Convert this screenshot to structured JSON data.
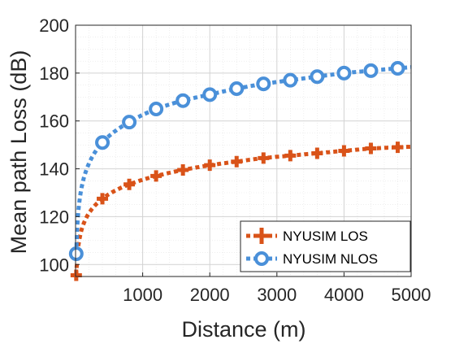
{
  "chart_data": {
    "type": "line",
    "xlabel": "Distance (m)",
    "ylabel": "Mean path Loss (dB)",
    "xlim": [
      0,
      5000
    ],
    "ylim": [
      95,
      200
    ],
    "x_ticks": [
      1000,
      2000,
      3000,
      4000,
      5000
    ],
    "x_tick_labels": [
      "1000",
      "2000",
      "3000",
      "4000",
      "5000"
    ],
    "y_ticks": [
      100,
      120,
      140,
      160,
      180,
      200
    ],
    "y_tick_labels": [
      "100",
      "120",
      "140",
      "160",
      "180",
      "200"
    ],
    "grid": true,
    "minor_grid": true,
    "legend_position": "bottom-right",
    "series": [
      {
        "name": "NYUSIM LOS",
        "color": "#D95319",
        "marker": "plus",
        "x": [
          10,
          400,
          800,
          1200,
          1600,
          2000,
          2400,
          2800,
          3200,
          3600,
          4000,
          4400,
          4800
        ],
        "y": [
          95.5,
          127.5,
          133.5,
          137,
          139.5,
          141.5,
          143,
          144.5,
          145.5,
          146.5,
          147.5,
          148.5,
          149
        ]
      },
      {
        "name": "NYUSIM NLOS",
        "color": "#4A90D9",
        "marker": "circle",
        "x": [
          10,
          400,
          800,
          1200,
          1600,
          2000,
          2400,
          2800,
          3200,
          3600,
          4000,
          4400,
          4800
        ],
        "y": [
          104.5,
          151,
          159.5,
          165,
          168.5,
          171,
          173.5,
          175.5,
          177,
          178.5,
          180,
          181,
          182
        ]
      }
    ]
  }
}
